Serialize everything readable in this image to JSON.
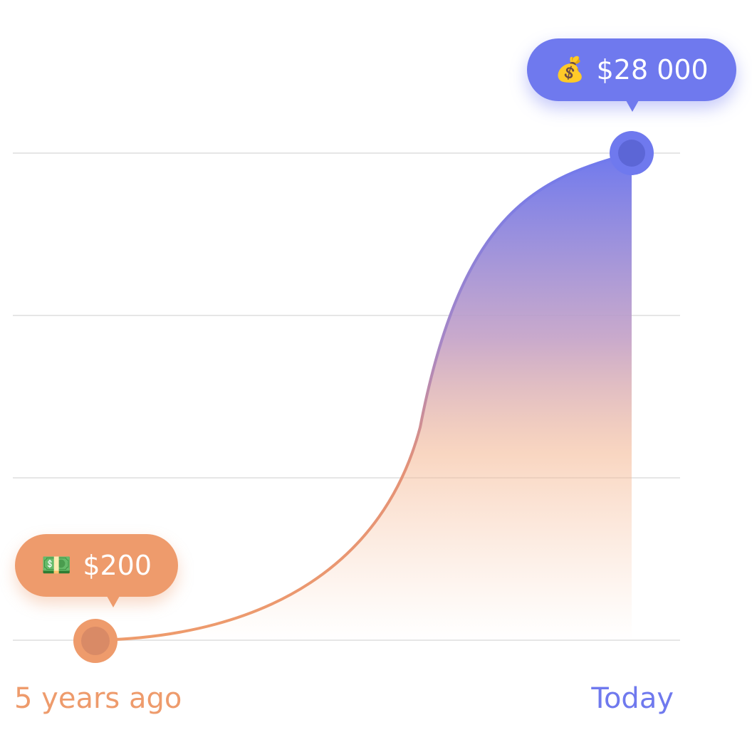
{
  "chart_data": {
    "type": "area",
    "x_labels": [
      "5 years ago",
      "Today"
    ],
    "points": [
      {
        "label": "5 years ago",
        "value": 200,
        "display": "$200",
        "icon": "banknote-icon",
        "emoji": "💵"
      },
      {
        "label": "Today",
        "value": 28000,
        "display": "$28 000",
        "icon": "money-bag-icon",
        "emoji": "💰"
      }
    ],
    "grid": true,
    "gridlines": 4,
    "colors": {
      "start": "#EE9B6C",
      "end": "#6F79EE",
      "grid": "#E6E6E6"
    }
  }
}
